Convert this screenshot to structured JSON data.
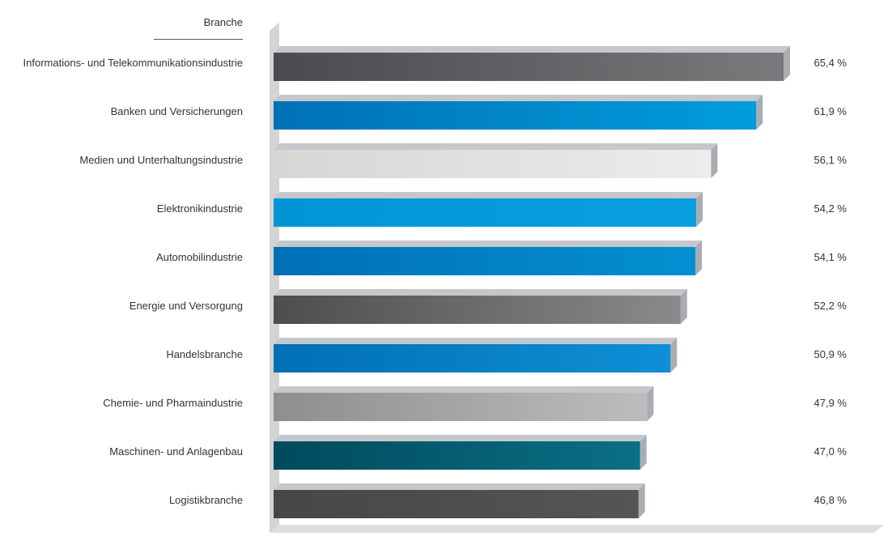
{
  "chart_data": {
    "type": "bar",
    "orientation": "horizontal",
    "category_header": "Branche",
    "categories": [
      "Informations- und Telekommunikationsindustrie",
      "Banken und Versicherungen",
      "Medien und Unterhaltungsindustrie",
      "Elektronikindustrie",
      "Automobilindustrie",
      "Energie und Versorgung",
      "Handelsbranche",
      "Chemie- und Pharmaindustrie",
      "Maschinen- und Anlagenbau",
      "Logistikbranche"
    ],
    "values": [
      65.4,
      61.9,
      56.1,
      54.2,
      54.1,
      52.2,
      50.9,
      47.9,
      47.0,
      46.8
    ],
    "value_labels": [
      "65,4 %",
      "61,9 %",
      "56,1 %",
      "54,2 %",
      "54,1 %",
      "52,2 %",
      "50,9 %",
      "47,9 %",
      "47,0 %",
      "46,8 %"
    ],
    "colors": [
      [
        "#4a4a4f",
        "#7a7a7c"
      ],
      [
        "#0071b7",
        "#009ddc"
      ],
      [
        "#d6d6d6",
        "#ececec"
      ],
      [
        "#0096d6",
        "#0aa0e0"
      ],
      [
        "#0070b5",
        "#0390d2"
      ],
      [
        "#4d4d4d",
        "#8a8a8a"
      ],
      [
        "#0070b5",
        "#0f8fd6"
      ],
      [
        "#8e8e8e",
        "#bdbdbd"
      ],
      [
        "#004a5c",
        "#0a7086"
      ],
      [
        "#474747",
        "#555555"
      ]
    ],
    "title": "",
    "xlabel": "",
    "ylabel": "",
    "grid": false,
    "legend": "none"
  }
}
